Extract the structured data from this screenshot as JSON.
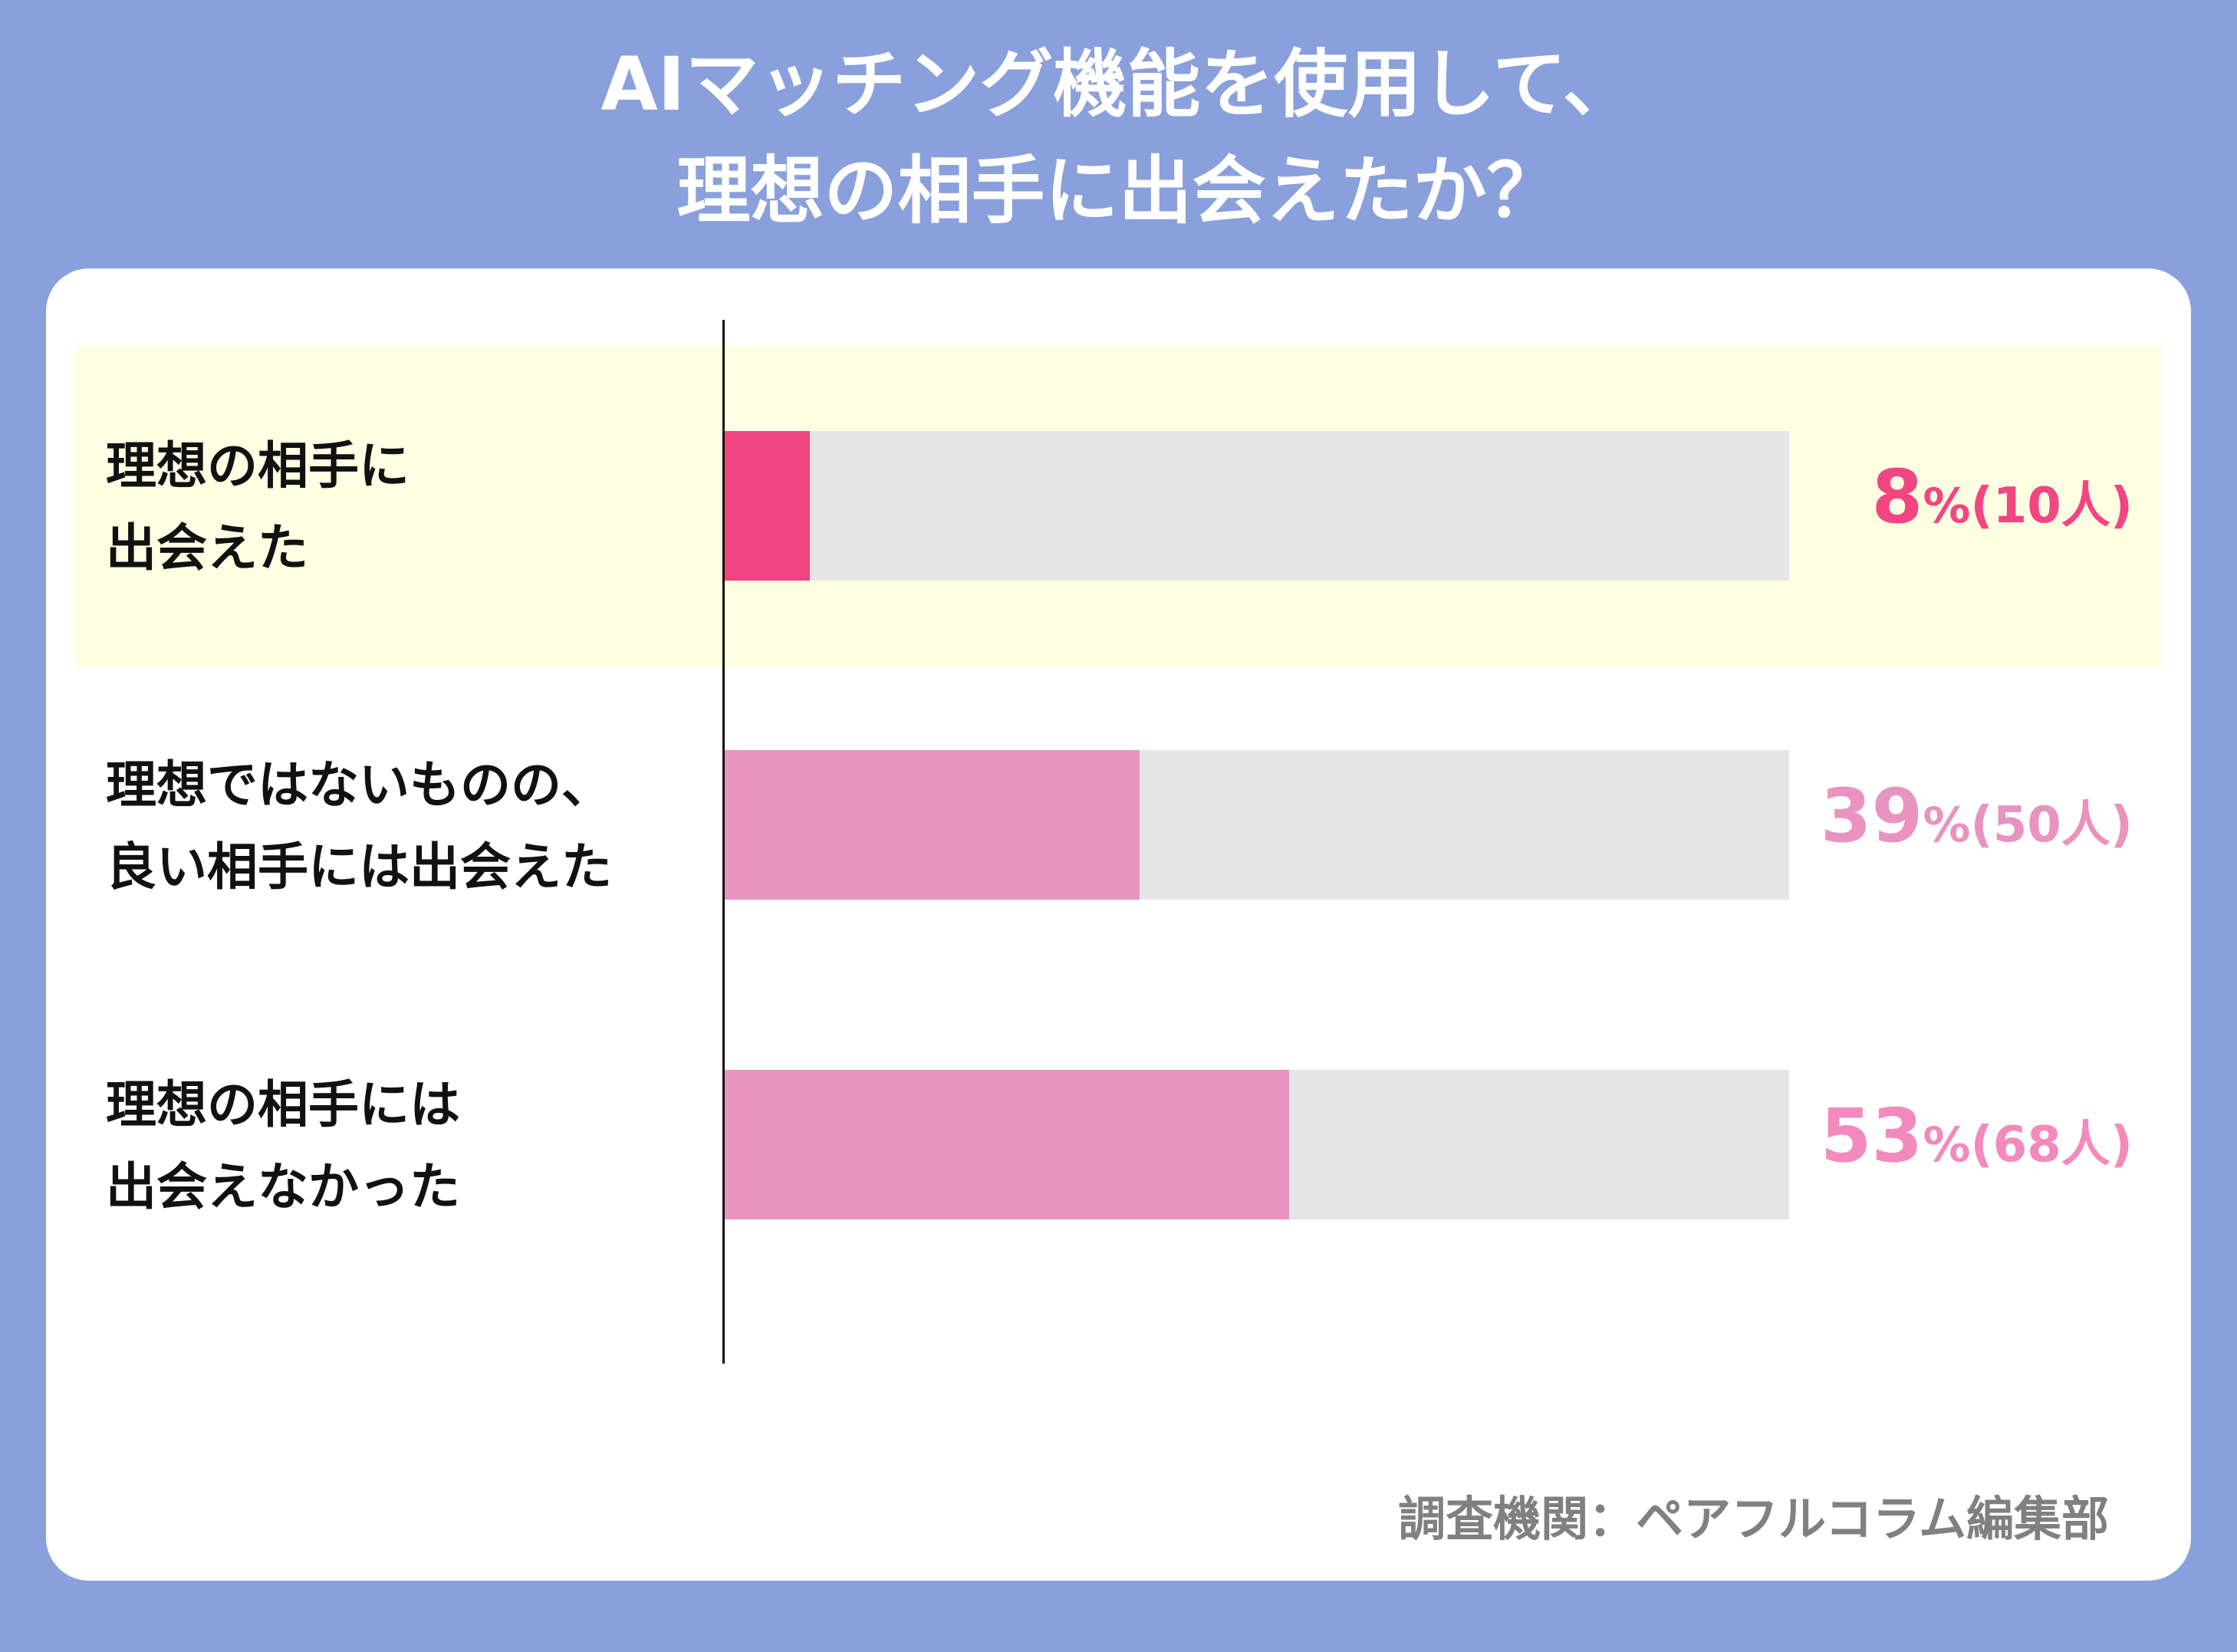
{
  "title_lines": [
    "AIマッチング機能を使用して、",
    "理想の相手に出会えたか？"
  ],
  "footer": "調査機関：ペアフルコラム編集部",
  "chart_data": {
    "type": "bar",
    "orientation": "horizontal",
    "title": "AIマッチング機能を使用して、理想の相手に出会えたか？",
    "categories": [
      "理想の相手に\n出会えた",
      "理想ではないものの、\n良い相手には出会えた",
      "理想の相手には\n出会えなかった"
    ],
    "values": [
      8,
      39,
      53
    ],
    "counts": [
      10,
      50,
      68
    ],
    "value_labels": [
      {
        "pct": "8",
        "sign": "%",
        "count": "(10人)"
      },
      {
        "pct": "39",
        "sign": "%",
        "count": "(50人)"
      },
      {
        "pct": "53",
        "sign": "%",
        "count": "(68人)"
      }
    ],
    "xlim": [
      0,
      100
    ],
    "highlighted": 0,
    "colors": {
      "bar": [
        "#f24582",
        "#e993c0",
        "#e993c0"
      ],
      "label": [
        "#f24582",
        "#e993c0",
        "#f389bd"
      ],
      "track": "#e6e6e6",
      "highlight": "#fefee2"
    }
  }
}
